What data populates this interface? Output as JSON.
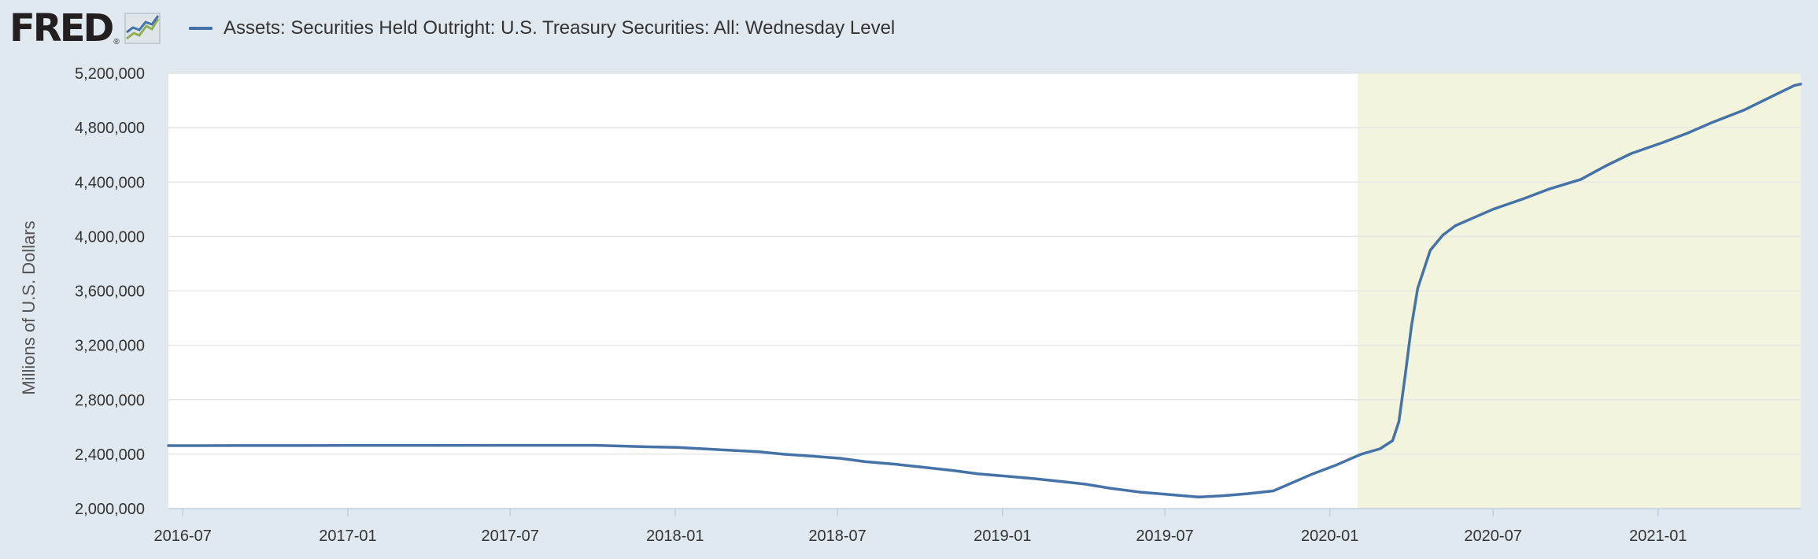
{
  "header": {
    "logo_text": "FRED",
    "logo_mark": "®",
    "logo_icon": "line-chart-icon"
  },
  "chart_data": {
    "type": "line",
    "title": "",
    "xlabel": "",
    "ylabel": "Millions of U.S. Dollars",
    "ylim": [
      2000000,
      5200000
    ],
    "xlim": [
      "2016-06-15",
      "2021-06-09"
    ],
    "grid": true,
    "legend": "top-left",
    "y_ticks": [
      {
        "value": 2000000,
        "label": "2,000,000"
      },
      {
        "value": 2400000,
        "label": "2,400,000"
      },
      {
        "value": 2800000,
        "label": "2,800,000"
      },
      {
        "value": 3200000,
        "label": "3,200,000"
      },
      {
        "value": 3600000,
        "label": "3,600,000"
      },
      {
        "value": 4000000,
        "label": "4,000,000"
      },
      {
        "value": 4400000,
        "label": "4,400,000"
      },
      {
        "value": 4800000,
        "label": "4,800,000"
      },
      {
        "value": 5200000,
        "label": "5,200,000"
      }
    ],
    "x_ticks": [
      {
        "value": "2016-07-01",
        "label": "2016-07"
      },
      {
        "value": "2017-01-01",
        "label": "2017-01"
      },
      {
        "value": "2017-07-01",
        "label": "2017-07"
      },
      {
        "value": "2018-01-01",
        "label": "2018-01"
      },
      {
        "value": "2018-07-01",
        "label": "2018-07"
      },
      {
        "value": "2019-01-01",
        "label": "2019-01"
      },
      {
        "value": "2019-07-01",
        "label": "2019-07"
      },
      {
        "value": "2020-01-01",
        "label": "2020-01"
      },
      {
        "value": "2020-07-01",
        "label": "2020-07"
      },
      {
        "value": "2021-01-01",
        "label": "2021-01"
      }
    ],
    "shaded_regions": [
      {
        "start": "2020-02-01",
        "end": "2021-06-09",
        "color": "#f3f4dd"
      }
    ],
    "series": [
      {
        "name": "Assets: Securities Held Outright: U.S. Treasury Securities: All: Wednesday Level",
        "color": "#4572a7",
        "points": [
          [
            "2016-06-15",
            2463000
          ],
          [
            "2016-09-01",
            2463500
          ],
          [
            "2017-01-01",
            2464000
          ],
          [
            "2017-04-01",
            2464500
          ],
          [
            "2017-07-01",
            2465000
          ],
          [
            "2017-10-04",
            2465000
          ],
          [
            "2017-11-01",
            2460000
          ],
          [
            "2017-12-01",
            2454000
          ],
          [
            "2018-01-03",
            2450000
          ],
          [
            "2018-02-01",
            2440000
          ],
          [
            "2018-03-01",
            2430000
          ],
          [
            "2018-04-04",
            2418000
          ],
          [
            "2018-05-02",
            2400000
          ],
          [
            "2018-06-06",
            2384000
          ],
          [
            "2018-07-04",
            2370000
          ],
          [
            "2018-08-01",
            2345000
          ],
          [
            "2018-09-05",
            2325000
          ],
          [
            "2018-10-03",
            2305000
          ],
          [
            "2018-11-07",
            2280000
          ],
          [
            "2018-12-05",
            2255000
          ],
          [
            "2019-01-02",
            2240000
          ],
          [
            "2019-02-06",
            2220000
          ],
          [
            "2019-03-06",
            2200000
          ],
          [
            "2019-04-03",
            2180000
          ],
          [
            "2019-05-01",
            2150000
          ],
          [
            "2019-06-05",
            2120000
          ],
          [
            "2019-07-03",
            2105000
          ],
          [
            "2019-08-07",
            2085000
          ],
          [
            "2019-09-04",
            2095000
          ],
          [
            "2019-10-02",
            2110000
          ],
          [
            "2019-10-30",
            2130000
          ],
          [
            "2019-11-20",
            2190000
          ],
          [
            "2019-12-11",
            2250000
          ],
          [
            "2020-01-08",
            2320000
          ],
          [
            "2020-02-05",
            2400000
          ],
          [
            "2020-02-26",
            2440000
          ],
          [
            "2020-03-11",
            2500000
          ],
          [
            "2020-03-18",
            2640000
          ],
          [
            "2020-03-25",
            2980000
          ],
          [
            "2020-04-01",
            3340000
          ],
          [
            "2020-04-08",
            3620000
          ],
          [
            "2020-04-22",
            3900000
          ],
          [
            "2020-05-06",
            4010000
          ],
          [
            "2020-05-20",
            4080000
          ],
          [
            "2020-06-10",
            4140000
          ],
          [
            "2020-07-01",
            4200000
          ],
          [
            "2020-08-05",
            4280000
          ],
          [
            "2020-09-02",
            4350000
          ],
          [
            "2020-10-07",
            4420000
          ],
          [
            "2020-11-04",
            4520000
          ],
          [
            "2020-12-02",
            4610000
          ],
          [
            "2021-01-06",
            4690000
          ],
          [
            "2021-02-03",
            4760000
          ],
          [
            "2021-03-03",
            4840000
          ],
          [
            "2021-04-07",
            4930000
          ],
          [
            "2021-05-05",
            5020000
          ],
          [
            "2021-06-02",
            5110000
          ],
          [
            "2021-06-09",
            5120000
          ]
        ]
      }
    ]
  }
}
